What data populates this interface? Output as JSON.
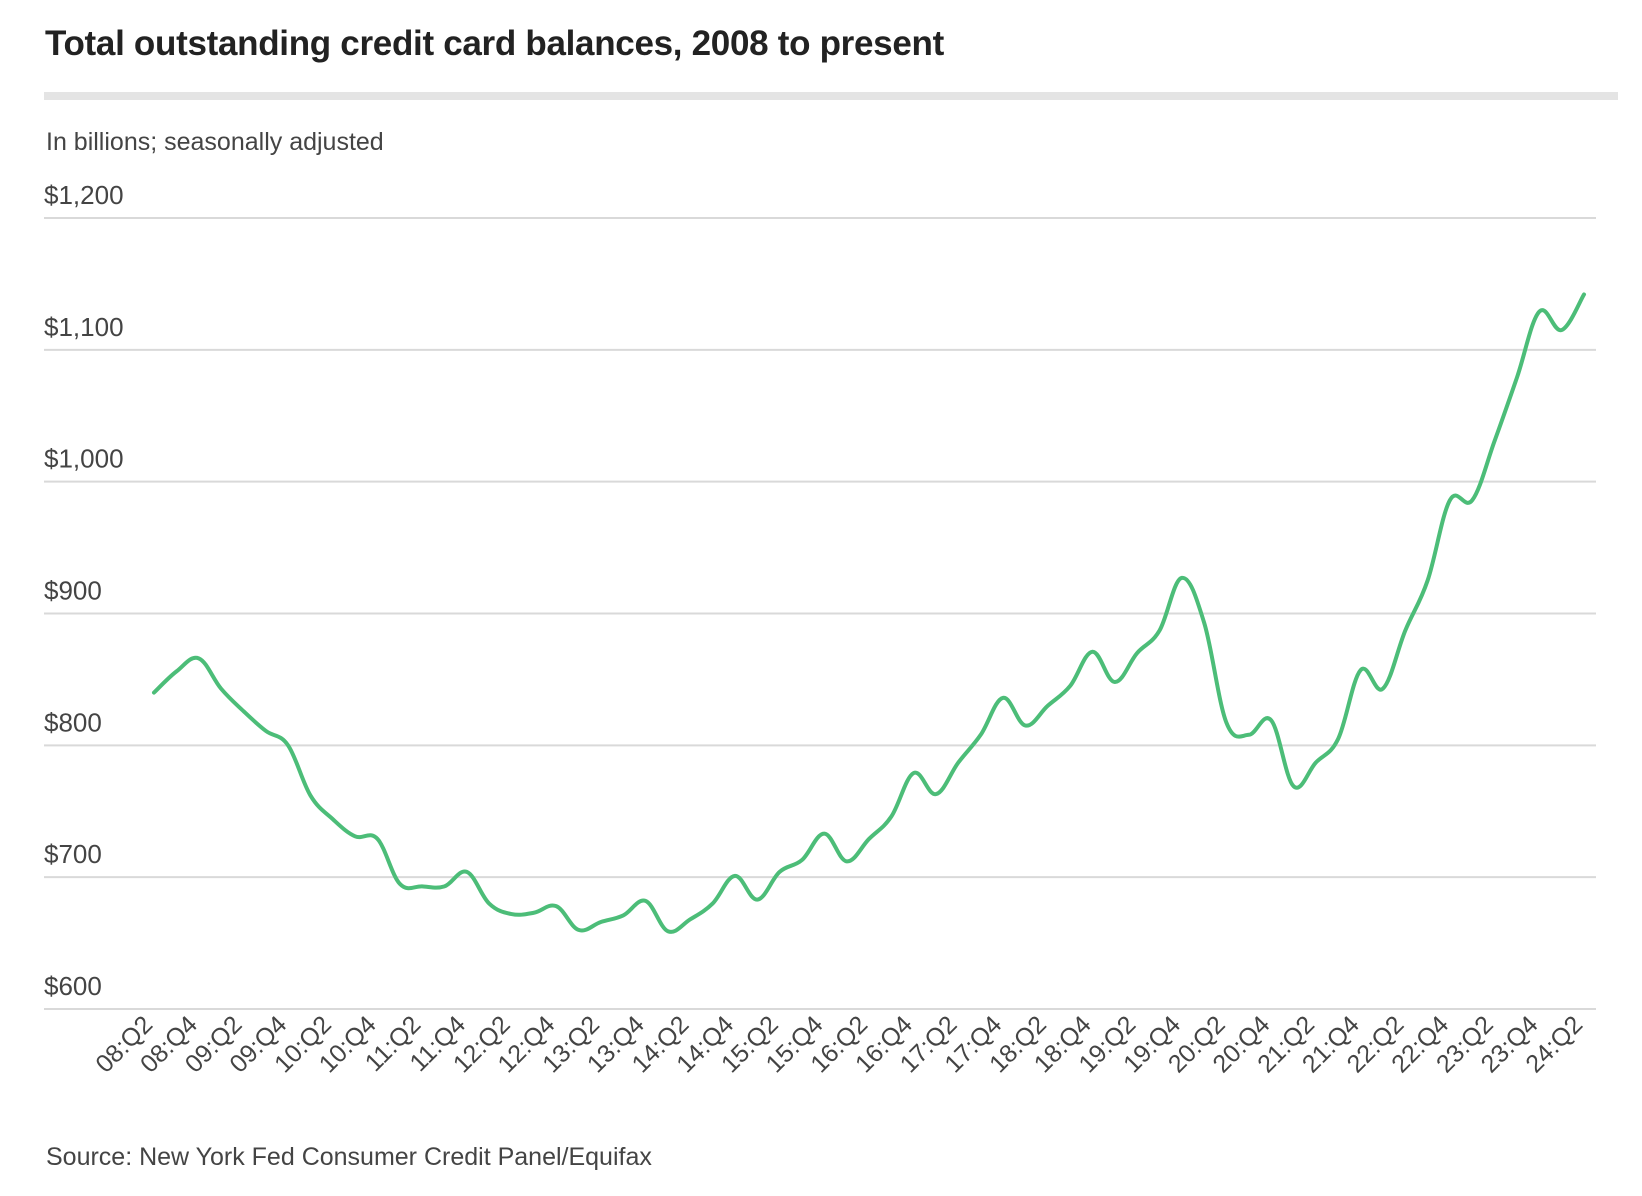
{
  "title": "Total outstanding credit card balances, 2008 to present",
  "subtitle": "In billions; seasonally adjusted",
  "source": "Source: New York Fed Consumer Credit Panel/Equifax",
  "colors": {
    "line": "#4cbd78",
    "grid": "#d9d9d9",
    "text": "#222222",
    "muted": "#444444",
    "rule": "#e4e4e4"
  },
  "chart_data": {
    "type": "line",
    "title": "Total outstanding credit card balances, 2008 to present",
    "subtitle": "In billions; seasonally adjusted",
    "xlabel": "",
    "ylabel": "",
    "ylim": [
      600,
      1200
    ],
    "yticks": [
      600,
      700,
      800,
      900,
      1000,
      1100,
      1200
    ],
    "ytick_labels": [
      "$600",
      "$700",
      "$800",
      "$900",
      "$1,000",
      "$1,100",
      "$1,200"
    ],
    "xtick_labels": [
      "08:Q2",
      "08:Q4",
      "09:Q2",
      "09:Q4",
      "10:Q2",
      "10:Q4",
      "11:Q2",
      "11:Q4",
      "12:Q2",
      "12:Q4",
      "13:Q2",
      "13:Q4",
      "14:Q2",
      "14:Q4",
      "15:Q2",
      "15:Q4",
      "16:Q2",
      "16:Q4",
      "17:Q2",
      "17:Q4",
      "18:Q2",
      "18:Q4",
      "19:Q2",
      "19:Q4",
      "20:Q2",
      "20:Q4",
      "21:Q2",
      "21:Q4",
      "22:Q2",
      "22:Q4",
      "23:Q2",
      "23:Q4",
      "24:Q2"
    ],
    "grid": true,
    "legend": "none",
    "x": [
      "08:Q2",
      "08:Q3",
      "08:Q4",
      "09:Q1",
      "09:Q2",
      "09:Q3",
      "09:Q4",
      "10:Q1",
      "10:Q2",
      "10:Q3",
      "10:Q4",
      "11:Q1",
      "11:Q2",
      "11:Q3",
      "11:Q4",
      "12:Q1",
      "12:Q2",
      "12:Q3",
      "12:Q4",
      "13:Q1",
      "13:Q2",
      "13:Q3",
      "13:Q4",
      "14:Q1",
      "14:Q2",
      "14:Q3",
      "14:Q4",
      "15:Q1",
      "15:Q2",
      "15:Q3",
      "15:Q4",
      "16:Q1",
      "16:Q2",
      "16:Q3",
      "16:Q4",
      "17:Q1",
      "17:Q2",
      "17:Q3",
      "17:Q4",
      "18:Q1",
      "18:Q2",
      "18:Q3",
      "18:Q4",
      "19:Q1",
      "19:Q2",
      "19:Q3",
      "19:Q4",
      "20:Q1",
      "20:Q2",
      "20:Q3",
      "20:Q4",
      "21:Q1",
      "21:Q2",
      "21:Q3",
      "21:Q4",
      "22:Q1",
      "22:Q2",
      "22:Q3",
      "22:Q4",
      "23:Q1",
      "23:Q2",
      "23:Q3",
      "23:Q4",
      "24:Q1",
      "24:Q2"
    ],
    "series": [
      {
        "values": [
          840,
          856,
          866,
          843,
          826,
          811,
          800,
          762,
          744,
          731,
          729,
          695,
          693,
          693,
          704,
          680,
          672,
          673,
          678,
          660,
          666,
          671,
          682,
          659,
          668,
          680,
          701,
          683,
          704,
          713,
          733,
          712,
          729,
          746,
          779,
          763,
          787,
          808,
          836,
          815,
          830,
          845,
          871,
          848,
          870,
          887,
          927,
          893,
          817,
          808,
          819,
          769,
          787,
          805,
          857,
          843,
          887,
          925,
          986,
          986,
          1031,
          1079,
          1129,
          1115,
          1142
        ]
      }
    ]
  }
}
